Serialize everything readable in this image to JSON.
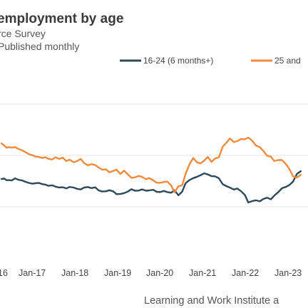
{
  "chart_data": {
    "type": "line",
    "title": "employment by age",
    "subtitle": "rce Survey",
    "note": "Published monthly",
    "source": "Learning and Work Institute a",
    "xlabel": "",
    "ylabel": "",
    "x_ticks": [
      "16",
      "Jan-17",
      "Jan-18",
      "Jan-19",
      "Jan-20",
      "Jan-21",
      "Jan-22",
      "Jan-23"
    ],
    "grid": "horizontal",
    "legend_position": "top-right",
    "series": [
      {
        "name": "16-24 (6 months+)",
        "color": "#2d4a5a",
        "points": [
          [
            0.0,
            54.5
          ],
          [
            0.7,
            55.0
          ],
          [
            1.2,
            53.2
          ],
          [
            1.7,
            53.4
          ],
          [
            2.4,
            53.0
          ],
          [
            3.2,
            55.2
          ],
          [
            4.0,
            53.7
          ],
          [
            4.8,
            53.1
          ],
          [
            5.6,
            51.6
          ],
          [
            6.4,
            50.4
          ],
          [
            7.2,
            49.5
          ],
          [
            8.0,
            50.0
          ],
          [
            8.8,
            50.3
          ],
          [
            9.6,
            49.0
          ],
          [
            10.3,
            48.5
          ],
          [
            11.0,
            47.2
          ],
          [
            11.9,
            47.8
          ],
          [
            12.7,
            46.3
          ],
          [
            13.5,
            45.4
          ],
          [
            14.4,
            45.7
          ],
          [
            15.2,
            44.4
          ],
          [
            16.0,
            46.0
          ],
          [
            16.9,
            45.4
          ],
          [
            17.7,
            44.0
          ],
          [
            18.6,
            43.3
          ],
          [
            19.4,
            45.3
          ],
          [
            20.3,
            45.9
          ],
          [
            21.1,
            44.7
          ],
          [
            22.0,
            45.6
          ],
          [
            22.8,
            42.3
          ],
          [
            23.6,
            41.1
          ],
          [
            24.5,
            41.3
          ],
          [
            25.3,
            42.5
          ],
          [
            26.2,
            41.3
          ],
          [
            27.0,
            38.2
          ],
          [
            27.9,
            38.4
          ],
          [
            28.8,
            39.4
          ],
          [
            29.6,
            40.9
          ],
          [
            30.5,
            43.5
          ],
          [
            31.3,
            41.9
          ],
          [
            32.2,
            42.1
          ],
          [
            33.0,
            43.4
          ],
          [
            33.9,
            41.9
          ],
          [
            34.7,
            42.3
          ],
          [
            35.6,
            42.9
          ],
          [
            36.4,
            40.8
          ],
          [
            37.2,
            40.5
          ],
          [
            38.1,
            41.7
          ],
          [
            38.9,
            40.5
          ],
          [
            39.8,
            39.8
          ],
          [
            40.6,
            42.4
          ],
          [
            41.5,
            37.0
          ],
          [
            42.4,
            41.0
          ],
          [
            43.2,
            50.0
          ],
          [
            44.1,
            53.4
          ],
          [
            45.0,
            55.5
          ],
          [
            45.8,
            56.8
          ],
          [
            46.7,
            58.7
          ],
          [
            47.6,
            60.7
          ],
          [
            48.4,
            59.5
          ],
          [
            49.3,
            57.6
          ],
          [
            50.1,
            57.5
          ],
          [
            51.0,
            55.3
          ],
          [
            51.9,
            49.0
          ],
          [
            52.7,
            47.0
          ],
          [
            53.6,
            45.3
          ],
          [
            54.5,
            43.2
          ],
          [
            55.3,
            44.3
          ],
          [
            56.2,
            41.4
          ],
          [
            57.1,
            37.3
          ],
          [
            57.9,
            29.2
          ],
          [
            58.8,
            30.7
          ],
          [
            59.7,
            31.6
          ],
          [
            60.6,
            30.5
          ],
          [
            61.4,
            33.0
          ],
          [
            62.3,
            34.4
          ],
          [
            63.2,
            32.7
          ],
          [
            64.0,
            36.6
          ],
          [
            64.9,
            40.2
          ],
          [
            65.8,
            44.6
          ],
          [
            66.7,
            46.0
          ],
          [
            67.5,
            48.0
          ],
          [
            68.4,
            51.8
          ],
          [
            69.3,
            60.0
          ],
          [
            70.2,
            63.0
          ]
        ]
      },
      {
        "name": "25 and",
        "color": "#f08a3c",
        "points": [
          [
            0.0,
            93.0
          ],
          [
            0.7,
            90.6
          ],
          [
            1.2,
            88.2
          ],
          [
            1.7,
            88.9
          ],
          [
            2.4,
            88.4
          ],
          [
            3.2,
            89.0
          ],
          [
            4.0,
            87.0
          ],
          [
            4.8,
            85.6
          ],
          [
            5.6,
            83.6
          ],
          [
            6.4,
            81.5
          ],
          [
            7.2,
            80.3
          ],
          [
            8.0,
            78.8
          ],
          [
            8.8,
            78.3
          ],
          [
            9.6,
            77.2
          ],
          [
            10.3,
            78.0
          ],
          [
            11.0,
            76.3
          ],
          [
            11.9,
            75.7
          ],
          [
            12.7,
            78.0
          ],
          [
            13.5,
            76.3
          ],
          [
            14.4,
            77.5
          ],
          [
            15.2,
            73.9
          ],
          [
            16.0,
            75.4
          ],
          [
            16.9,
            72.7
          ],
          [
            17.7,
            73.8
          ],
          [
            18.6,
            76.2
          ],
          [
            19.4,
            71.7
          ],
          [
            20.3,
            69.3
          ],
          [
            21.1,
            70.6
          ],
          [
            22.0,
            69.7
          ],
          [
            22.8,
            67.0
          ],
          [
            23.6,
            64.7
          ],
          [
            24.5,
            65.1
          ],
          [
            25.3,
            61.8
          ],
          [
            26.2,
            63.3
          ],
          [
            27.0,
            64.7
          ],
          [
            27.9,
            60.0
          ],
          [
            28.8,
            63.6
          ],
          [
            29.6,
            59.8
          ],
          [
            30.5,
            55.8
          ],
          [
            31.3,
            56.4
          ],
          [
            32.2,
            57.9
          ],
          [
            33.0,
            56.8
          ],
          [
            33.9,
            54.3
          ],
          [
            34.7,
            55.5
          ],
          [
            35.6,
            53.1
          ],
          [
            36.4,
            50.6
          ],
          [
            37.2,
            50.4
          ],
          [
            38.1,
            51.4
          ],
          [
            38.9,
            51.8
          ],
          [
            39.8,
            47.7
          ],
          [
            40.6,
            40.2
          ],
          [
            41.5,
            46.6
          ],
          [
            42.4,
            48.1
          ],
          [
            43.2,
            60.0
          ],
          [
            44.1,
            70.3
          ],
          [
            45.0,
            77.3
          ],
          [
            45.8,
            72.7
          ],
          [
            46.7,
            71.4
          ],
          [
            47.6,
            74.6
          ],
          [
            48.4,
            78.4
          ],
          [
            49.3,
            73.1
          ],
          [
            50.1,
            76.6
          ],
          [
            51.0,
            78.0
          ],
          [
            51.9,
            89.5
          ],
          [
            52.7,
            93.3
          ],
          [
            53.6,
            98.3
          ],
          [
            54.5,
            94.4
          ],
          [
            55.3,
            95.4
          ],
          [
            56.2,
            97.8
          ],
          [
            57.1,
            97.5
          ],
          [
            57.9,
            99.3
          ],
          [
            58.8,
            95.9
          ],
          [
            59.7,
            90.7
          ],
          [
            60.6,
            88.9
          ],
          [
            61.4,
            85.0
          ],
          [
            62.3,
            79.7
          ],
          [
            63.2,
            78.7
          ],
          [
            64.0,
            73.9
          ],
          [
            64.9,
            75.0
          ],
          [
            65.8,
            75.0
          ],
          [
            66.7,
            70.8
          ],
          [
            67.5,
            65.5
          ],
          [
            68.4,
            57.5
          ],
          [
            69.3,
            56.0
          ],
          [
            70.2,
            59.0
          ]
        ]
      }
    ]
  }
}
